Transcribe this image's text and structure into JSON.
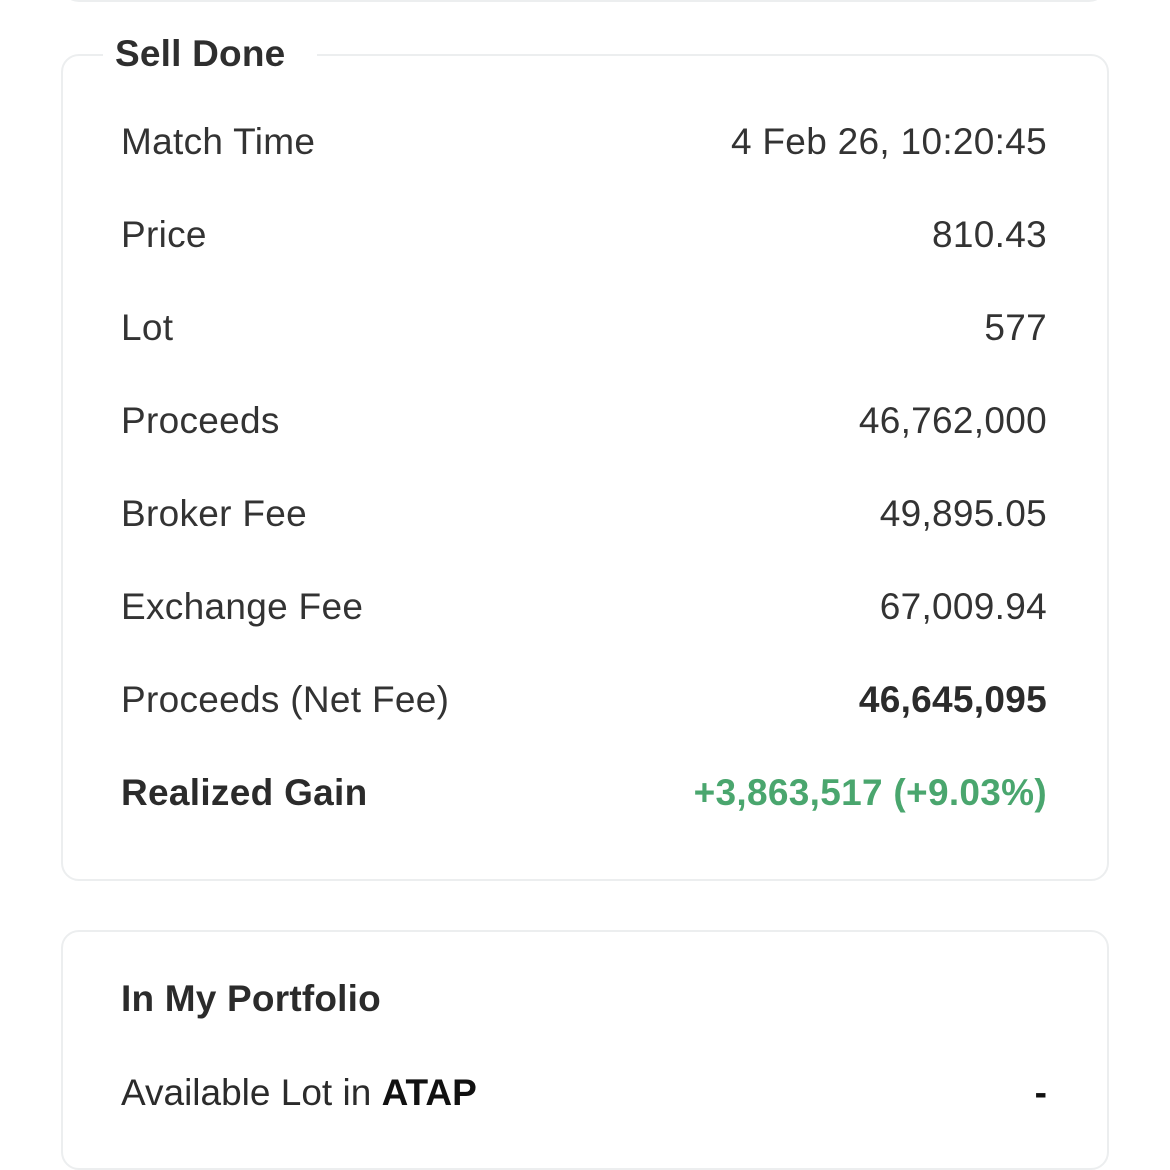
{
  "sell_done": {
    "title": "Sell Done",
    "rows": [
      {
        "label": "Match Time",
        "value": "4 Feb 26, 10:20:45"
      },
      {
        "label": "Price",
        "value": "810.43"
      },
      {
        "label": "Lot",
        "value": "577"
      },
      {
        "label": "Proceeds",
        "value": "46,762,000"
      },
      {
        "label": "Broker Fee",
        "value": "49,895.05"
      },
      {
        "label": "Exchange Fee",
        "value": "67,009.94"
      },
      {
        "label": "Proceeds (Net Fee)",
        "value": "46,645,095"
      },
      {
        "label": "Realized Gain",
        "value": "+3,863,517 (+9.03%)"
      }
    ]
  },
  "portfolio": {
    "title": "In My Portfolio",
    "available_prefix": "Available Lot in ",
    "ticker": "ATAP",
    "available_value": "-"
  },
  "colors": {
    "gain": "#4aa66e",
    "border": "#eceeef",
    "text": "#333333"
  }
}
